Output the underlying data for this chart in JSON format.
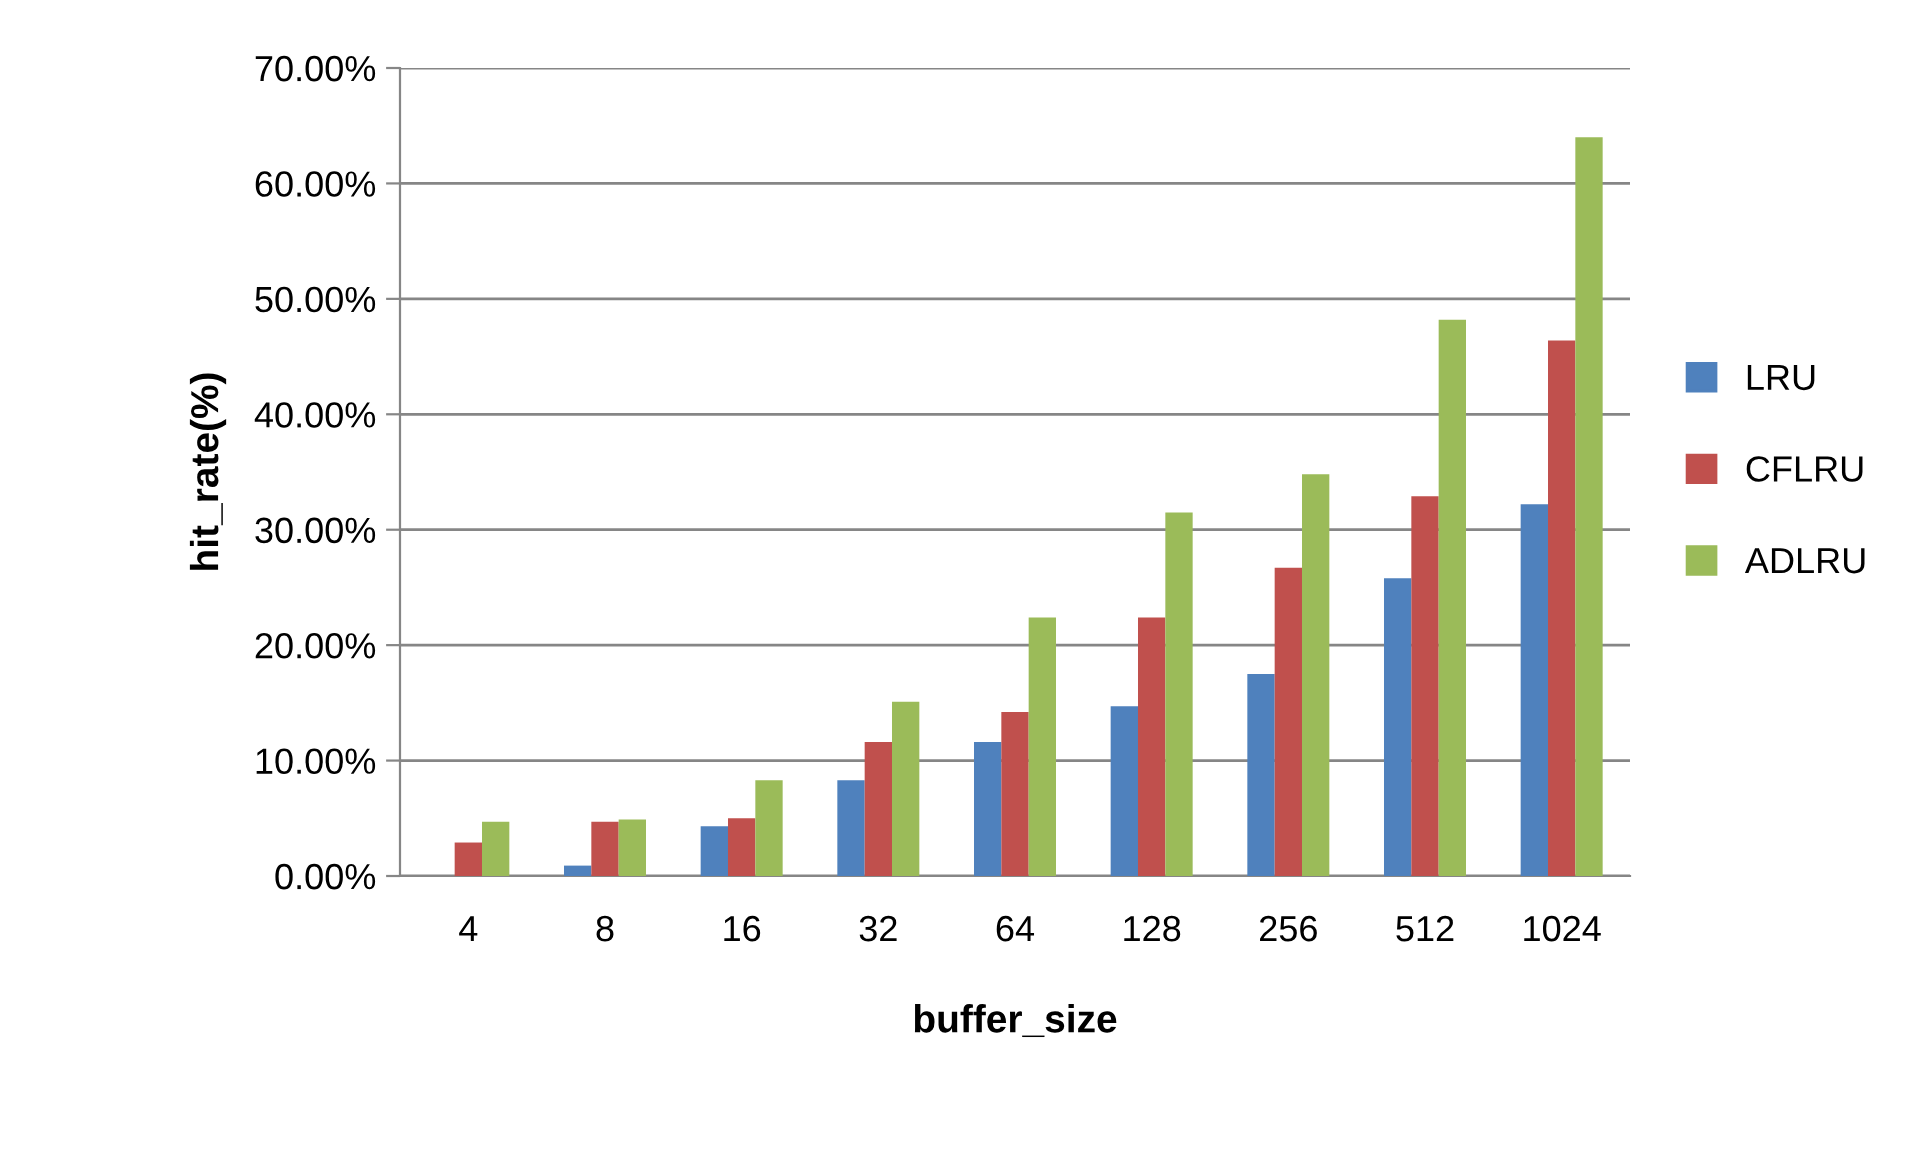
{
  "chart_data": {
    "type": "bar",
    "xlabel": "buffer_size",
    "ylabel": "hit_rate(%)",
    "categories": [
      "4",
      "8",
      "16",
      "32",
      "64",
      "128",
      "256",
      "512",
      "1024"
    ],
    "series": [
      {
        "name": "LRU",
        "color": "#4f81bd",
        "values": [
          null,
          0.9,
          4.3,
          8.3,
          11.6,
          14.7,
          17.5,
          25.8,
          32.2
        ]
      },
      {
        "name": "CFLRU",
        "color": "#c0504d",
        "values": [
          2.9,
          4.7,
          5.0,
          11.6,
          14.2,
          22.4,
          26.7,
          32.9,
          46.4
        ]
      },
      {
        "name": "ADLRU",
        "color": "#9bbb59",
        "values": [
          4.7,
          4.9,
          8.3,
          15.1,
          22.4,
          31.5,
          34.8,
          48.2,
          64.0
        ]
      }
    ],
    "ylim": [
      0,
      70
    ],
    "yticks": [
      {
        "value": 0,
        "label": "0.00%"
      },
      {
        "value": 10,
        "label": "10.00%"
      },
      {
        "value": 20,
        "label": "20.00%"
      },
      {
        "value": 30,
        "label": "30.00%"
      },
      {
        "value": 40,
        "label": "40.00%"
      },
      {
        "value": 50,
        "label": "50.00%"
      },
      {
        "value": 60,
        "label": "60.00%"
      },
      {
        "value": 70,
        "label": "70.00%"
      }
    ],
    "grid": "y",
    "legend": "right"
  }
}
